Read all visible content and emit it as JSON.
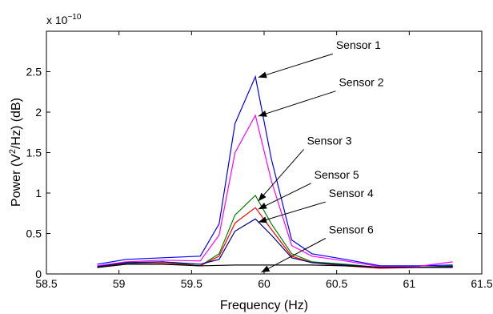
{
  "chart_data": {
    "type": "line",
    "xlabel": "Frequency (Hz)",
    "ylabel_prefix": "Power (V",
    "ylabel_sup": "2",
    "ylabel_suffix": "/Hz) (dB)",
    "y_multiplier": {
      "base": "x 10",
      "exp": "−10"
    },
    "xlim": [
      58.5,
      61.5
    ],
    "ylim": [
      0,
      3.0
    ],
    "xticks": [
      58.5,
      59,
      59.5,
      60,
      60.5,
      61,
      61.5
    ],
    "yticks": [
      0,
      0.5,
      1,
      1.5,
      2,
      2.5
    ],
    "grid": false,
    "series": [
      {
        "name": "Sensor 1",
        "color": "#0000ff",
        "x": [
          58.85,
          59.05,
          59.3,
          59.56,
          59.69,
          59.8,
          59.94,
          60.05,
          60.19,
          60.33,
          60.56,
          60.8,
          61.05,
          61.3
        ],
        "y": [
          0.12,
          0.18,
          0.2,
          0.22,
          0.62,
          1.86,
          2.44,
          1.42,
          0.42,
          0.25,
          0.18,
          0.1,
          0.1,
          0.11
        ]
      },
      {
        "name": "Sensor 2",
        "color": "#ff00ff",
        "x": [
          58.85,
          59.05,
          59.3,
          59.56,
          59.69,
          59.8,
          59.94,
          60.05,
          60.19,
          60.33,
          60.56,
          60.8,
          61.05,
          61.3
        ],
        "y": [
          0.1,
          0.15,
          0.17,
          0.16,
          0.48,
          1.5,
          1.96,
          1.15,
          0.35,
          0.22,
          0.16,
          0.09,
          0.09,
          0.15
        ]
      },
      {
        "name": "Sensor 3",
        "color": "#008000",
        "x": [
          58.85,
          59.05,
          59.3,
          59.56,
          59.69,
          59.8,
          59.94,
          60.05,
          60.19,
          60.33,
          60.56,
          60.8,
          61.05,
          61.3
        ],
        "y": [
          0.08,
          0.13,
          0.15,
          0.1,
          0.25,
          0.73,
          0.97,
          0.62,
          0.25,
          0.15,
          0.12,
          0.08,
          0.08,
          0.1
        ]
      },
      {
        "name": "Sensor 5",
        "color": "#ff0000",
        "x": [
          58.85,
          59.05,
          59.3,
          59.56,
          59.69,
          59.8,
          59.94,
          60.05,
          60.19,
          60.33,
          60.56,
          60.8,
          61.05,
          61.3
        ],
        "y": [
          0.08,
          0.12,
          0.13,
          0.1,
          0.22,
          0.63,
          0.82,
          0.55,
          0.22,
          0.14,
          0.1,
          0.07,
          0.08,
          0.09
        ]
      },
      {
        "name": "Sensor 4",
        "color": "#00008b",
        "x": [
          58.85,
          59.05,
          59.3,
          59.56,
          59.69,
          59.8,
          59.94,
          60.05,
          60.19,
          60.33,
          60.56,
          60.8,
          61.05,
          61.3
        ],
        "y": [
          0.09,
          0.14,
          0.15,
          0.12,
          0.18,
          0.53,
          0.68,
          0.48,
          0.2,
          0.14,
          0.11,
          0.08,
          0.08,
          0.08
        ]
      },
      {
        "name": "Sensor 6",
        "color": "#000000",
        "x": [
          58.85,
          59.05,
          59.3,
          59.56,
          59.8,
          60.05,
          60.33,
          60.56,
          60.8,
          61.05,
          61.3
        ],
        "y": [
          0.08,
          0.12,
          0.12,
          0.1,
          0.11,
          0.11,
          0.11,
          0.1,
          0.08,
          0.08,
          0.09
        ]
      }
    ],
    "annotations": [
      {
        "text": "Sensor 1",
        "text_at": [
          60.65,
          2.78
        ],
        "arrow_to": [
          59.96,
          2.43
        ]
      },
      {
        "text": "Sensor 2",
        "text_at": [
          60.67,
          2.32
        ],
        "arrow_to": [
          59.96,
          1.95
        ]
      },
      {
        "text": "Sensor 3",
        "text_at": [
          60.45,
          1.6
        ],
        "arrow_to": [
          59.96,
          0.9
        ]
      },
      {
        "text": "Sensor 5",
        "text_at": [
          60.5,
          1.18
        ],
        "arrow_to": [
          59.96,
          0.8
        ]
      },
      {
        "text": "Sensor 4",
        "text_at": [
          60.6,
          0.95
        ],
        "arrow_to": [
          59.96,
          0.64
        ]
      },
      {
        "text": "Sensor 6",
        "text_at": [
          60.6,
          0.5
        ],
        "arrow_to": [
          59.98,
          0.02
        ]
      }
    ]
  }
}
